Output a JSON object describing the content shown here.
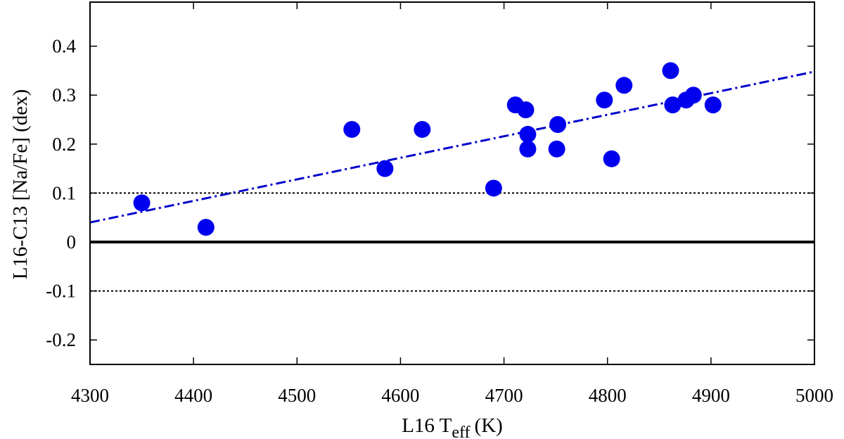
{
  "chart_data": {
    "type": "scatter",
    "xlabel": "L16 T",
    "xlabel_subscript": "eff",
    "xlabel_unit": "(K)",
    "ylabel": "L16-C13 [Na/Fe] (dex)",
    "xlim": [
      4300,
      5000
    ],
    "ylim": [
      -0.25,
      0.49
    ],
    "xticks": [
      4300,
      4400,
      4500,
      4600,
      4700,
      4800,
      4900,
      5000
    ],
    "yticks": [
      -0.2,
      -0.1,
      0,
      0.1,
      0.2,
      0.3,
      0.4
    ],
    "ytick_labels": [
      "-0.2",
      "-0.1",
      "0",
      "0.1",
      "0.2",
      "0.3",
      "0.4"
    ],
    "grid": false,
    "series": [
      {
        "marker": "filled-circle",
        "color": "#0000ee",
        "points": [
          {
            "x": 4350,
            "y": 0.08
          },
          {
            "x": 4412,
            "y": 0.03
          },
          {
            "x": 4553,
            "y": 0.23
          },
          {
            "x": 4585,
            "y": 0.15
          },
          {
            "x": 4621,
            "y": 0.23
          },
          {
            "x": 4690,
            "y": 0.11
          },
          {
            "x": 4711,
            "y": 0.28
          },
          {
            "x": 4721,
            "y": 0.27
          },
          {
            "x": 4723,
            "y": 0.22
          },
          {
            "x": 4723,
            "y": 0.19
          },
          {
            "x": 4751,
            "y": 0.19
          },
          {
            "x": 4752,
            "y": 0.24
          },
          {
            "x": 4797,
            "y": 0.29
          },
          {
            "x": 4804,
            "y": 0.17
          },
          {
            "x": 4816,
            "y": 0.32
          },
          {
            "x": 4861,
            "y": 0.35
          },
          {
            "x": 4863,
            "y": 0.28
          },
          {
            "x": 4876,
            "y": 0.29
          },
          {
            "x": 4883,
            "y": 0.3
          },
          {
            "x": 4902,
            "y": 0.28
          }
        ]
      }
    ],
    "fit_line": {
      "style": "dash-dot",
      "color": "#0000cc",
      "x": [
        4300,
        5000
      ],
      "y": [
        0.04,
        0.348
      ]
    },
    "reference_lines": [
      {
        "y": 0,
        "style": "solid",
        "color": "#000000"
      },
      {
        "y": 0.1,
        "style": "dotted",
        "color": "#000000"
      },
      {
        "y": -0.1,
        "style": "dotted",
        "color": "#000000"
      }
    ]
  }
}
